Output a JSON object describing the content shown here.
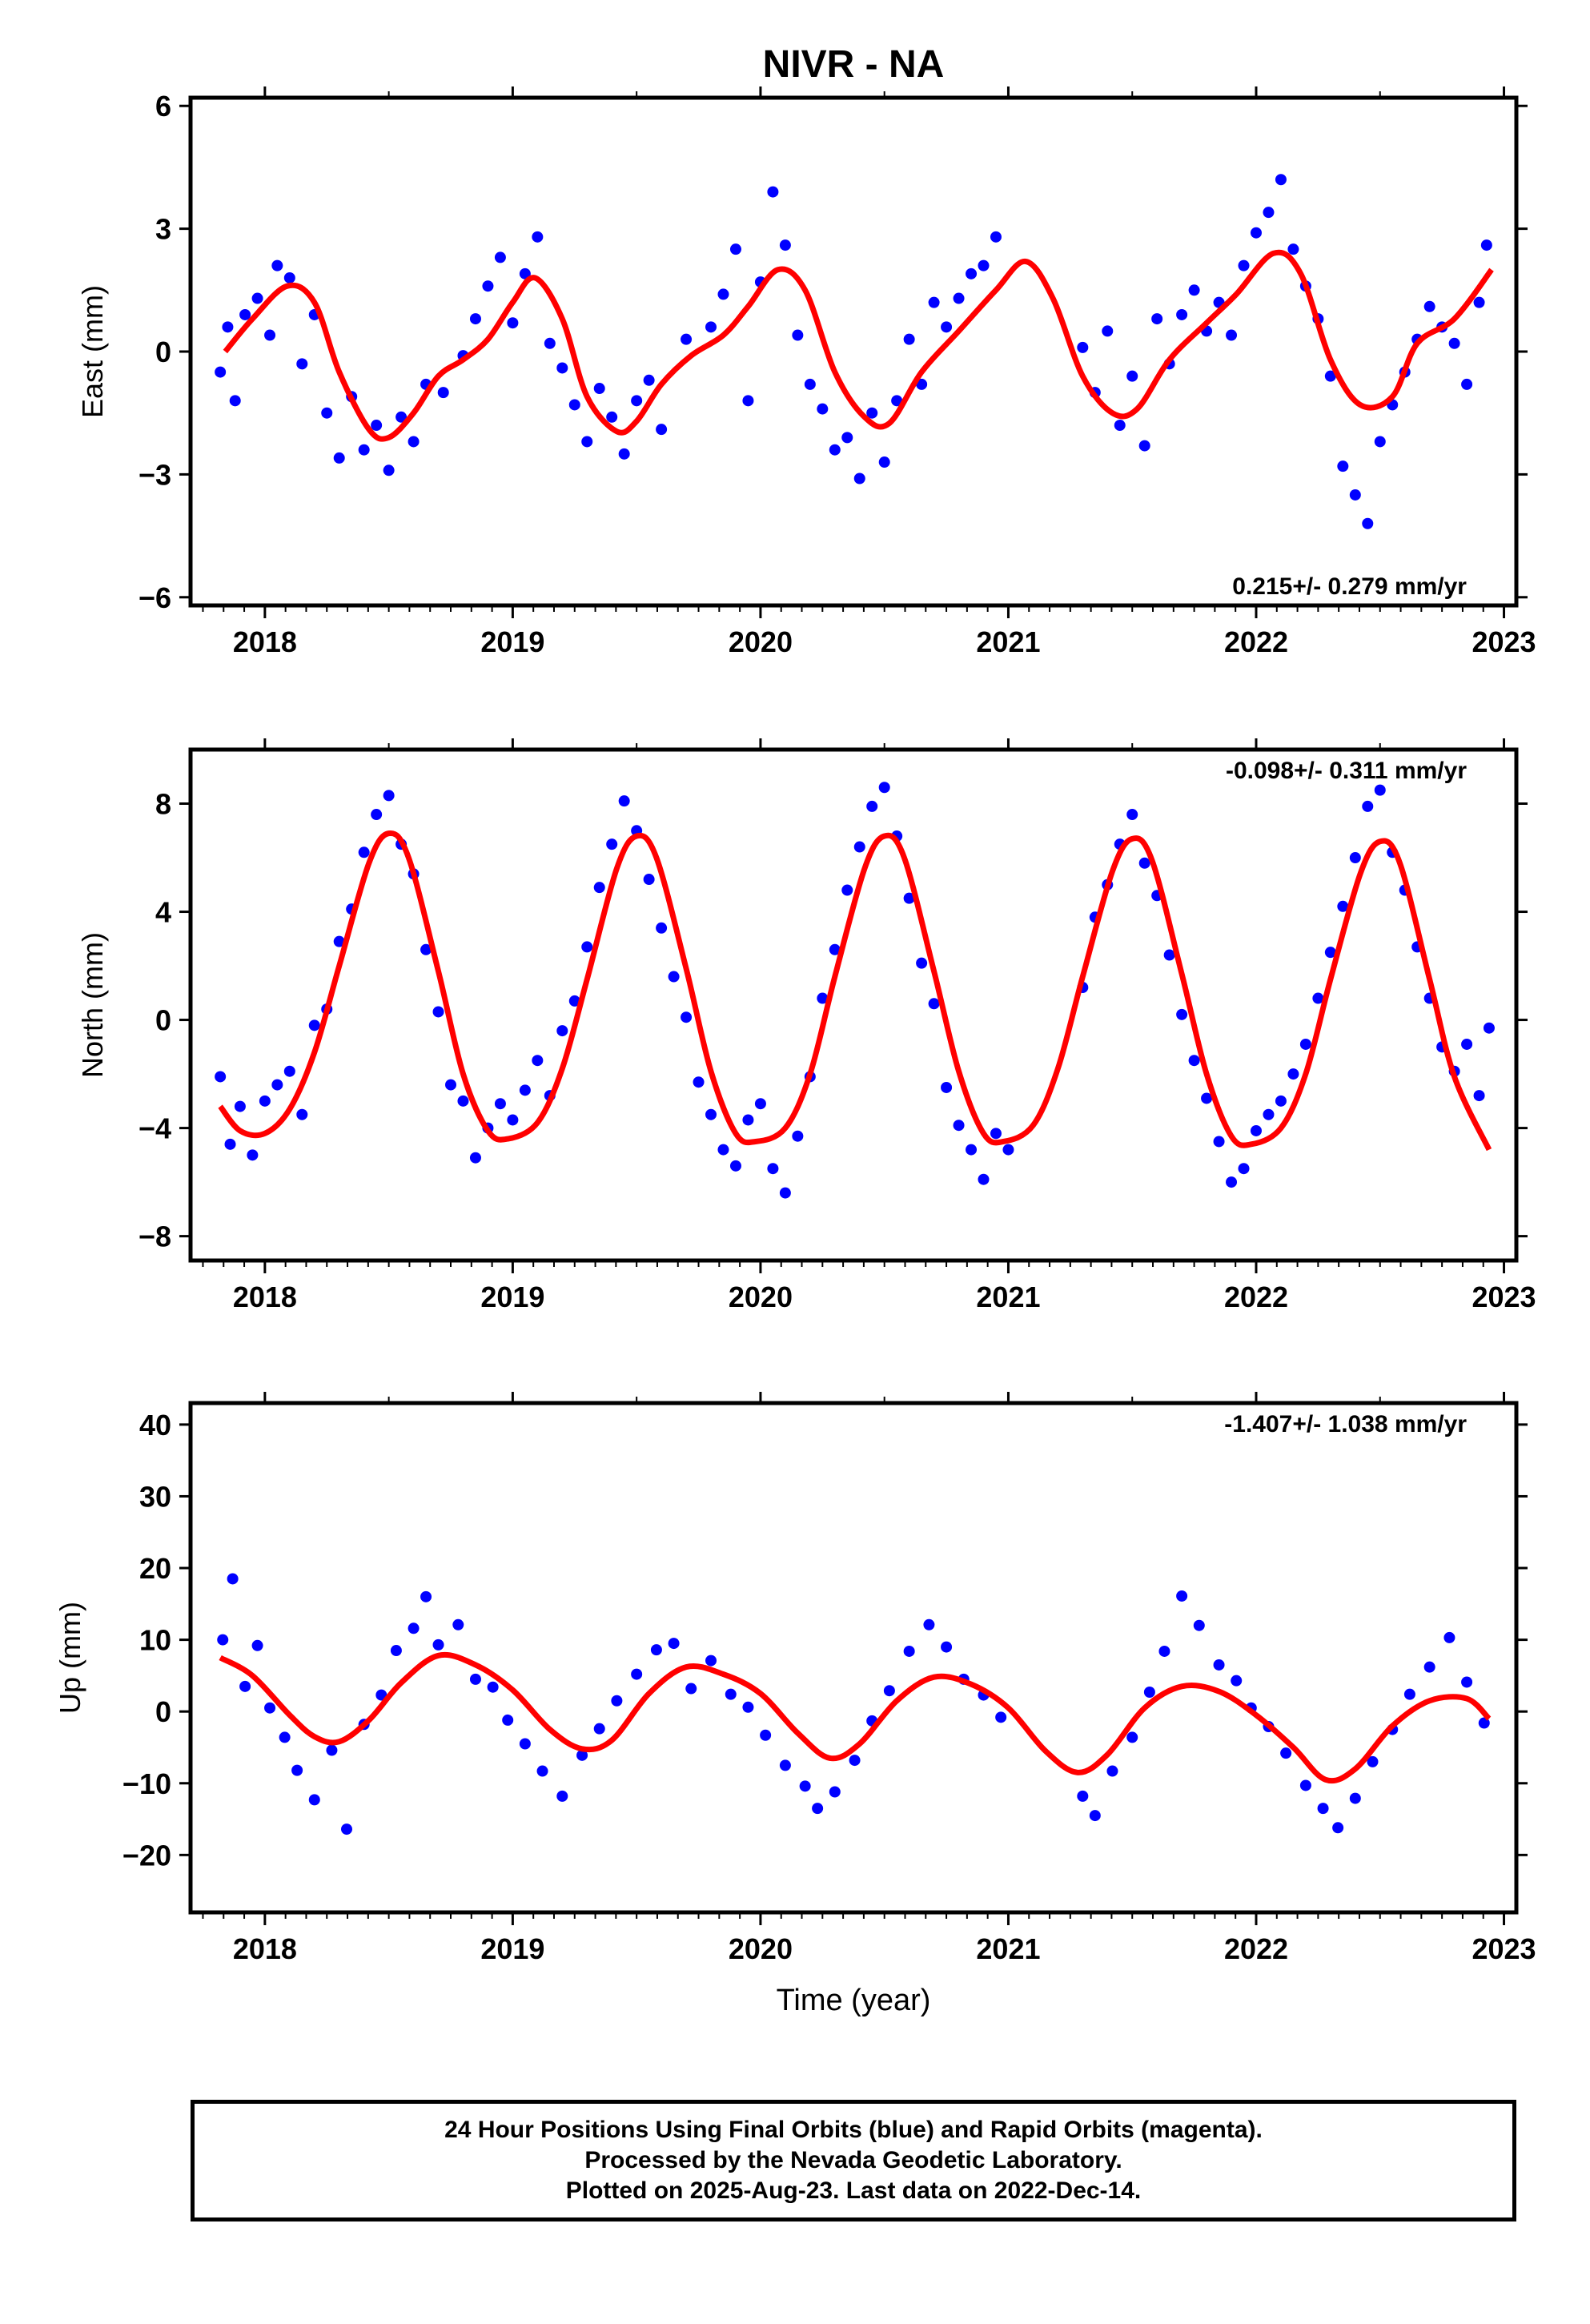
{
  "title": "NIVR - NA",
  "xlabel": "Time (year)",
  "footer": {
    "line1": "24 Hour Positions Using Final Orbits (blue) and Rapid Orbits (magenta).",
    "line2": "Processed by the Nevada Geodetic Laboratory.",
    "line3": "Plotted on 2025-Aug-23. Last data on 2022-Dec-14."
  },
  "colors": {
    "data": "#0000ff",
    "model": "#ff0000",
    "frame": "#000000"
  },
  "chart_data": [
    {
      "type": "scatter",
      "ylabel": "East (mm)",
      "xlim": [
        2017.7,
        2023.05
      ],
      "ylim": [
        -6.2,
        6.2
      ],
      "xticks": [
        2018,
        2019,
        2020,
        2021,
        2022,
        2023
      ],
      "yticks": [
        -6,
        -3,
        0,
        3,
        6
      ],
      "rate_label": "0.215+/- 0.279 mm/yr",
      "rate_position": "bottom-right",
      "series": [
        {
          "role": "model",
          "x": [
            2017.84,
            2017.95,
            2018.09,
            2018.2,
            2018.3,
            2018.42,
            2018.5,
            2018.6,
            2018.7,
            2018.8,
            2018.9,
            2019.0,
            2019.09,
            2019.2,
            2019.3,
            2019.42,
            2019.5,
            2019.6,
            2019.72,
            2019.85,
            2019.95,
            2020.07,
            2020.18,
            2020.3,
            2020.42,
            2020.52,
            2020.65,
            2020.8,
            2020.95,
            2021.07,
            2021.18,
            2021.3,
            2021.42,
            2021.52,
            2021.65,
            2021.8,
            2021.92,
            2022.07,
            2022.18,
            2022.3,
            2022.42,
            2022.55,
            2022.65,
            2022.8,
            2022.95
          ],
          "y": [
            0.0,
            0.8,
            1.6,
            1.2,
            -0.5,
            -1.9,
            -2.1,
            -1.5,
            -0.6,
            -0.2,
            0.3,
            1.2,
            1.8,
            0.8,
            -1.1,
            -1.95,
            -1.7,
            -0.8,
            -0.1,
            0.4,
            1.1,
            2.0,
            1.5,
            -0.5,
            -1.6,
            -1.75,
            -0.5,
            0.5,
            1.5,
            2.2,
            1.3,
            -0.6,
            -1.5,
            -1.4,
            -0.2,
            0.7,
            1.4,
            2.4,
            1.9,
            -0.2,
            -1.3,
            -1.1,
            0.2,
            0.8,
            2.0
          ]
        },
        {
          "role": "data",
          "x": [
            2017.82,
            2017.85,
            2017.88,
            2017.92,
            2017.97,
            2018.02,
            2018.05,
            2018.1,
            2018.15,
            2018.2,
            2018.25,
            2018.3,
            2018.35,
            2018.4,
            2018.45,
            2018.5,
            2018.55,
            2018.6,
            2018.65,
            2018.72,
            2018.8,
            2018.85,
            2018.9,
            2018.95,
            2019.0,
            2019.05,
            2019.1,
            2019.15,
            2019.2,
            2019.25,
            2019.3,
            2019.35,
            2019.4,
            2019.45,
            2019.5,
            2019.55,
            2019.6,
            2019.7,
            2019.8,
            2019.85,
            2019.9,
            2019.95,
            2020.0,
            2020.05,
            2020.1,
            2020.15,
            2020.2,
            2020.25,
            2020.3,
            2020.35,
            2020.4,
            2020.45,
            2020.5,
            2020.55,
            2020.6,
            2020.65,
            2020.7,
            2020.75,
            2020.8,
            2020.85,
            2020.9,
            2020.95,
            2021.3,
            2021.35,
            2021.4,
            2021.45,
            2021.5,
            2021.55,
            2021.6,
            2021.65,
            2021.7,
            2021.75,
            2021.8,
            2021.85,
            2021.9,
            2021.95,
            2022.0,
            2022.05,
            2022.1,
            2022.15,
            2022.2,
            2022.25,
            2022.3,
            2022.35,
            2022.4,
            2022.45,
            2022.5,
            2022.55,
            2022.6,
            2022.65,
            2022.7,
            2022.75,
            2022.8,
            2022.85,
            2022.9,
            2022.93
          ],
          "y": [
            -0.5,
            0.6,
            -1.2,
            0.9,
            1.3,
            0.4,
            2.1,
            1.8,
            -0.3,
            0.9,
            -1.5,
            -2.6,
            -1.1,
            -2.4,
            -1.8,
            -2.9,
            -1.6,
            -2.2,
            -0.8,
            -1.0,
            -0.1,
            0.8,
            1.6,
            2.3,
            0.7,
            1.9,
            2.8,
            0.2,
            -0.4,
            -1.3,
            -2.2,
            -0.9,
            -1.6,
            -2.5,
            -1.2,
            -0.7,
            -1.9,
            0.3,
            0.6,
            1.4,
            2.5,
            -1.2,
            1.7,
            3.9,
            2.6,
            0.4,
            -0.8,
            -1.4,
            -2.4,
            -2.1,
            -3.1,
            -1.5,
            -2.7,
            -1.2,
            0.3,
            -0.8,
            1.2,
            0.6,
            1.3,
            1.9,
            2.1,
            2.8,
            0.1,
            -1.0,
            0.5,
            -1.8,
            -0.6,
            -2.3,
            0.8,
            -0.3,
            0.9,
            1.5,
            0.5,
            1.2,
            0.4,
            2.1,
            2.9,
            3.4,
            4.2,
            2.5,
            1.6,
            0.8,
            -0.6,
            -2.8,
            -3.5,
            -4.2,
            -2.2,
            -1.3,
            -0.5,
            0.3,
            1.1,
            0.6,
            0.2,
            -0.8,
            1.2,
            2.6
          ]
        }
      ]
    },
    {
      "type": "scatter",
      "ylabel": "North (mm)",
      "xlim": [
        2017.7,
        2023.05
      ],
      "ylim": [
        -8.9,
        10.0
      ],
      "xticks": [
        2018,
        2019,
        2020,
        2021,
        2022,
        2023
      ],
      "yticks": [
        -8,
        -4,
        0,
        4,
        8
      ],
      "rate_label": "-0.098+/- 0.311 mm/yr",
      "rate_position": "top-right",
      "series": [
        {
          "role": "model",
          "x": [
            2017.82,
            2017.9,
            2018.0,
            2018.1,
            2018.2,
            2018.3,
            2018.42,
            2018.5,
            2018.58,
            2018.7,
            2018.8,
            2018.9,
            2018.98,
            2019.1,
            2019.2,
            2019.3,
            2019.42,
            2019.5,
            2019.58,
            2019.7,
            2019.8,
            2019.9,
            2019.98,
            2020.1,
            2020.2,
            2020.3,
            2020.42,
            2020.5,
            2020.58,
            2020.7,
            2020.8,
            2020.9,
            2020.98,
            2021.1,
            2021.2,
            2021.3,
            2021.42,
            2021.5,
            2021.58,
            2021.7,
            2021.8,
            2021.9,
            2021.98,
            2022.1,
            2022.2,
            2022.3,
            2022.42,
            2022.5,
            2022.58,
            2022.7,
            2022.8,
            2022.94
          ],
          "y": [
            -3.2,
            -4.1,
            -4.2,
            -3.3,
            -1.2,
            2.0,
            5.8,
            6.9,
            6.0,
            1.8,
            -2.0,
            -4.1,
            -4.4,
            -3.8,
            -1.8,
            1.5,
            5.6,
            6.8,
            6.0,
            1.9,
            -1.9,
            -4.2,
            -4.5,
            -4.0,
            -2.0,
            1.6,
            5.6,
            6.8,
            6.0,
            1.8,
            -1.9,
            -4.2,
            -4.5,
            -3.9,
            -1.8,
            1.6,
            5.5,
            6.7,
            5.9,
            1.7,
            -2.0,
            -4.3,
            -4.6,
            -4.0,
            -2.0,
            1.5,
            5.4,
            6.6,
            5.8,
            1.5,
            -2.1,
            -4.8
          ]
        },
        {
          "role": "data",
          "x": [
            2017.82,
            2017.86,
            2017.9,
            2017.95,
            2018.0,
            2018.05,
            2018.1,
            2018.15,
            2018.2,
            2018.25,
            2018.3,
            2018.35,
            2018.4,
            2018.45,
            2018.5,
            2018.55,
            2018.6,
            2018.65,
            2018.7,
            2018.75,
            2018.8,
            2018.85,
            2018.9,
            2018.95,
            2019.0,
            2019.05,
            2019.1,
            2019.15,
            2019.2,
            2019.25,
            2019.3,
            2019.35,
            2019.4,
            2019.45,
            2019.5,
            2019.55,
            2019.6,
            2019.65,
            2019.7,
            2019.75,
            2019.8,
            2019.85,
            2019.9,
            2019.95,
            2020.0,
            2020.05,
            2020.1,
            2020.15,
            2020.2,
            2020.25,
            2020.3,
            2020.35,
            2020.4,
            2020.45,
            2020.5,
            2020.55,
            2020.6,
            2020.65,
            2020.7,
            2020.75,
            2020.8,
            2020.85,
            2020.9,
            2020.95,
            2021.0,
            2021.3,
            2021.35,
            2021.4,
            2021.45,
            2021.5,
            2021.55,
            2021.6,
            2021.65,
            2021.7,
            2021.75,
            2021.8,
            2021.85,
            2021.9,
            2021.95,
            2022.0,
            2022.05,
            2022.1,
            2022.15,
            2022.2,
            2022.25,
            2022.3,
            2022.35,
            2022.4,
            2022.45,
            2022.5,
            2022.55,
            2022.6,
            2022.65,
            2022.7,
            2022.75,
            2022.8,
            2022.85,
            2022.9,
            2022.94
          ],
          "y": [
            -2.1,
            -4.6,
            -3.2,
            -5.0,
            -3.0,
            -2.4,
            -1.9,
            -3.5,
            -0.2,
            0.4,
            2.9,
            4.1,
            6.2,
            7.6,
            8.3,
            6.5,
            5.4,
            2.6,
            0.3,
            -2.4,
            -3.0,
            -5.1,
            -4.0,
            -3.1,
            -3.7,
            -2.6,
            -1.5,
            -2.8,
            -0.4,
            0.7,
            2.7,
            4.9,
            6.5,
            8.1,
            7.0,
            5.2,
            3.4,
            1.6,
            0.1,
            -2.3,
            -3.5,
            -4.8,
            -5.4,
            -3.7,
            -3.1,
            -5.5,
            -6.4,
            -4.3,
            -2.1,
            0.8,
            2.6,
            4.8,
            6.4,
            7.9,
            8.6,
            6.8,
            4.5,
            2.1,
            0.6,
            -2.5,
            -3.9,
            -4.8,
            -5.9,
            -4.2,
            -4.8,
            1.2,
            3.8,
            5.0,
            6.5,
            7.6,
            5.8,
            4.6,
            2.4,
            0.2,
            -1.5,
            -2.9,
            -4.5,
            -6.0,
            -5.5,
            -4.1,
            -3.5,
            -3.0,
            -2.0,
            -0.9,
            0.8,
            2.5,
            4.2,
            6.0,
            7.9,
            8.5,
            6.2,
            4.8,
            2.7,
            0.8,
            -1.0,
            -1.9,
            -0.9,
            -2.8,
            -0.3
          ]
        }
      ]
    },
    {
      "type": "scatter",
      "ylabel": "Up (mm)",
      "xlim": [
        2017.7,
        2023.05
      ],
      "ylim": [
        -28,
        43
      ],
      "xticks": [
        2018,
        2019,
        2020,
        2021,
        2022,
        2023
      ],
      "yticks": [
        -20,
        -10,
        0,
        10,
        20,
        30,
        40
      ],
      "rate_label": "-1.407+/- 1.038 mm/yr",
      "rate_position": "top-right",
      "series": [
        {
          "role": "model",
          "x": [
            2017.82,
            2017.95,
            2018.1,
            2018.2,
            2018.3,
            2018.42,
            2018.55,
            2018.7,
            2018.85,
            2019.0,
            2019.15,
            2019.28,
            2019.4,
            2019.55,
            2019.7,
            2019.85,
            2020.0,
            2020.15,
            2020.28,
            2020.4,
            2020.55,
            2020.7,
            2020.85,
            2021.0,
            2021.15,
            2021.28,
            2021.4,
            2021.55,
            2021.7,
            2021.85,
            2022.0,
            2022.15,
            2022.28,
            2022.4,
            2022.55,
            2022.7,
            2022.85,
            2022.94
          ],
          "y": [
            7.5,
            5.0,
            -0.5,
            -3.5,
            -4.2,
            -1.2,
            4.0,
            7.8,
            6.5,
            3.0,
            -2.5,
            -5.2,
            -4.0,
            2.5,
            6.2,
            5.2,
            2.5,
            -3.0,
            -6.5,
            -4.5,
            1.5,
            4.8,
            3.8,
            0.5,
            -5.5,
            -8.5,
            -6.0,
            0.5,
            3.5,
            2.8,
            -0.5,
            -5.0,
            -9.5,
            -8.0,
            -2.0,
            1.5,
            1.8,
            -1.0
          ]
        },
        {
          "role": "data",
          "x": [
            2017.83,
            2017.87,
            2017.92,
            2017.97,
            2018.02,
            2018.08,
            2018.13,
            2018.2,
            2018.27,
            2018.33,
            2018.4,
            2018.47,
            2018.53,
            2018.6,
            2018.65,
            2018.7,
            2018.78,
            2018.85,
            2018.92,
            2018.98,
            2019.05,
            2019.12,
            2019.2,
            2019.28,
            2019.35,
            2019.42,
            2019.5,
            2019.58,
            2019.65,
            2019.72,
            2019.8,
            2019.88,
            2019.95,
            2020.02,
            2020.1,
            2020.18,
            2020.23,
            2020.3,
            2020.38,
            2020.45,
            2020.52,
            2020.6,
            2020.68,
            2020.75,
            2020.82,
            2020.9,
            2020.97,
            2021.3,
            2021.35,
            2021.42,
            2021.5,
            2021.57,
            2021.63,
            2021.7,
            2021.77,
            2021.85,
            2021.92,
            2021.98,
            2022.05,
            2022.12,
            2022.2,
            2022.27,
            2022.33,
            2022.4,
            2022.47,
            2022.55,
            2022.62,
            2022.7,
            2022.78,
            2022.85,
            2022.92
          ],
          "y": [
            10.0,
            18.5,
            3.5,
            9.2,
            0.5,
            -3.6,
            -8.2,
            -12.3,
            -5.4,
            -16.4,
            -1.8,
            2.3,
            8.5,
            11.6,
            16.0,
            9.3,
            12.1,
            4.5,
            3.4,
            -1.2,
            -4.5,
            -8.3,
            -11.8,
            -6.1,
            -2.4,
            1.5,
            5.2,
            8.6,
            9.5,
            3.2,
            7.1,
            2.4,
            0.6,
            -3.3,
            -7.5,
            -10.4,
            -13.5,
            -11.2,
            -6.8,
            -1.3,
            2.9,
            8.4,
            12.1,
            9.0,
            4.5,
            2.3,
            -0.8,
            -11.8,
            -14.5,
            -8.3,
            -3.6,
            2.7,
            8.4,
            16.1,
            12.0,
            6.5,
            4.3,
            0.5,
            -2.1,
            -5.8,
            -10.3,
            -13.5,
            -16.2,
            -12.1,
            -7.0,
            -2.5,
            2.4,
            6.2,
            10.3,
            4.1,
            -1.6
          ]
        }
      ]
    }
  ]
}
